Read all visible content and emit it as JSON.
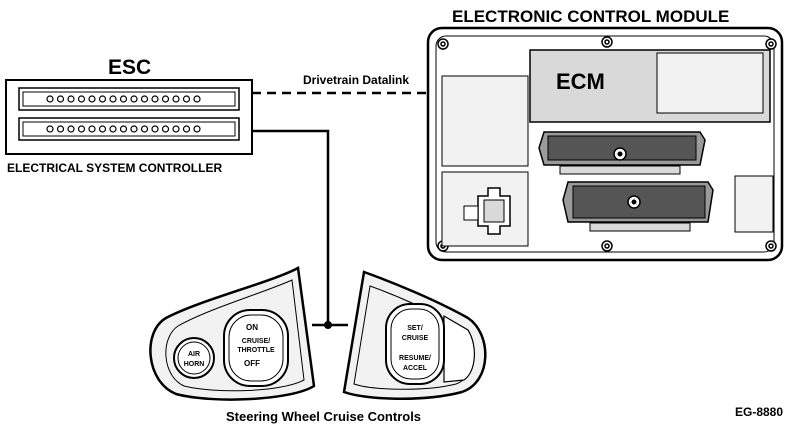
{
  "ecm_module": {
    "title": "ELECTRONIC CONTROL MODULE",
    "label": "ECM"
  },
  "esc": {
    "title": "ESC",
    "caption": "ELECTRICAL SYSTEM CONTROLLER"
  },
  "datalink": {
    "label": "Drivetrain Datalink"
  },
  "steering_controls": {
    "caption": "Steering Wheel Cruise Controls",
    "left_pad": {
      "air_horn_line1": "AIR",
      "air_horn_line2": "HORN",
      "cruise_on": "ON",
      "cruise_line1": "CRUISE/",
      "cruise_line2": "THROTTLE",
      "cruise_off": "OFF"
    },
    "right_pad": {
      "set_line1": "SET/",
      "set_line2": "CRUISE",
      "resume_line1": "RESUME/",
      "resume_line2": "ACCEL"
    }
  },
  "figure_id": "EG-8880",
  "colors": {
    "line": "#000000",
    "fill_light": "#f2f2f2",
    "fill_mid": "#d9d9d9",
    "fill_dark": "#555555"
  }
}
